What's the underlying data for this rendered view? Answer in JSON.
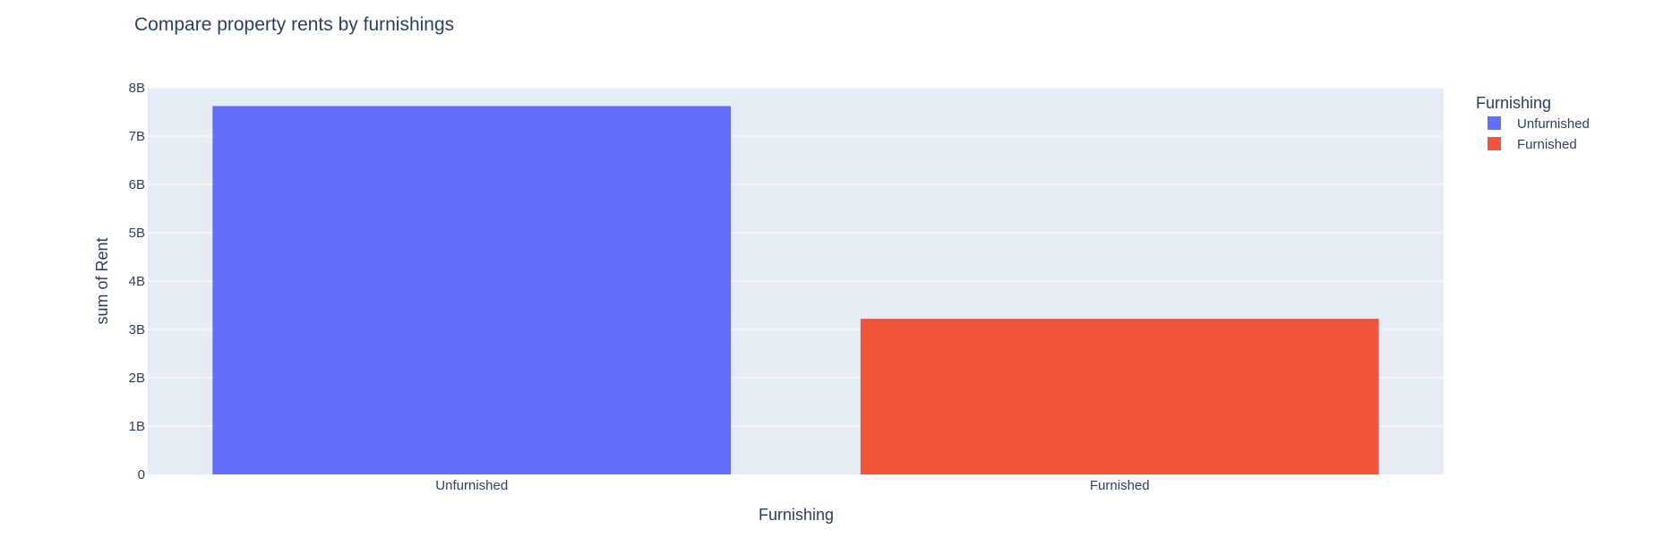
{
  "chart_data": {
    "type": "bar",
    "title": "Compare property rents by furnishings",
    "xlabel": "Furnishing",
    "ylabel": "sum of Rent",
    "categories": [
      "Unfurnished",
      "Furnished"
    ],
    "series": [
      {
        "name": "Unfurnished",
        "category": "Unfurnished",
        "value": 7620000000,
        "color": "#636efa"
      },
      {
        "name": "Furnished",
        "category": "Furnished",
        "value": 3220000000,
        "color": "#ef553b"
      }
    ],
    "ylim": [
      0,
      8000000000
    ],
    "yticks": [
      {
        "value": 0,
        "label": "0"
      },
      {
        "value": 1000000000,
        "label": "1B"
      },
      {
        "value": 2000000000,
        "label": "2B"
      },
      {
        "value": 3000000000,
        "label": "3B"
      },
      {
        "value": 4000000000,
        "label": "4B"
      },
      {
        "value": 5000000000,
        "label": "5B"
      },
      {
        "value": 6000000000,
        "label": "6B"
      },
      {
        "value": 7000000000,
        "label": "7B"
      },
      {
        "value": 8000000000,
        "label": "8B"
      }
    ],
    "legend": {
      "title": "Furnishing",
      "placement": "top-right"
    },
    "grid": true,
    "plot_background": "#e5ecf6"
  }
}
